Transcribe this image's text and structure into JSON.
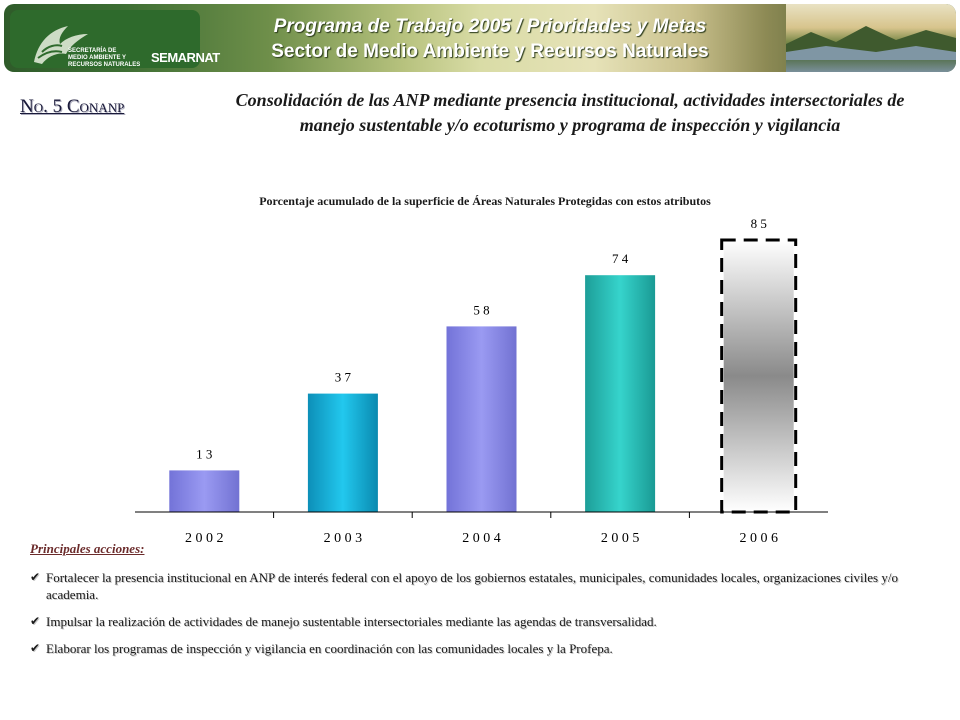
{
  "header": {
    "title_line1": "Programa de Trabajo 2005 / Prioridades y Metas",
    "title_line2": "Sector de Medio Ambiente y Recursos Naturales",
    "logo_text_lines": [
      "SECRETARÍA DE",
      "MEDIO AMBIENTE Y",
      "RECURSOS NATURALES"
    ],
    "brand": "SEMARNAT"
  },
  "slide_number": "No. 5 Conanp",
  "subtitle": "Consolidación de las ANP mediante presencia institucional, actividades intersectoriales de manejo sustentable y/o ecoturismo y programa de inspección y vigilancia",
  "chart_data": {
    "type": "bar",
    "title": "Porcentaje acumulado  de la superficie de Áreas Naturales Protegidas con estos atributos",
    "categories": [
      "2 0 0 2",
      "2 0 0 3",
      "2 0 0 4",
      "2 0 0 5",
      "2 0 0 6"
    ],
    "values": [
      13,
      37,
      58,
      74,
      85
    ],
    "value_labels": [
      "1 3",
      "3 7",
      "5 8",
      "7 4",
      "8 5"
    ],
    "ylim": [
      0,
      100
    ],
    "grid": false,
    "colors": [
      "#8d8dec",
      "#1ab8e0",
      "#8d8dec",
      "#2bc6bf",
      "#9a9a9a"
    ],
    "projected_category": "2 0 0 6"
  },
  "actions": {
    "heading": "Principales acciones:",
    "items": [
      "Fortalecer la presencia institucional  en ANP de interés federal con el apoyo de los gobiernos estatales, municipales,  comunidades locales, organizaciones  civiles y/o academia.",
      "Impulsar la realización  de actividades de manejo sustentable intersectoriales  mediante las agendas de transversalidad.",
      "Elaborar los programas  de inspección  y vigilancia  en coordinación con las comunidades locales y la Profepa."
    ]
  }
}
